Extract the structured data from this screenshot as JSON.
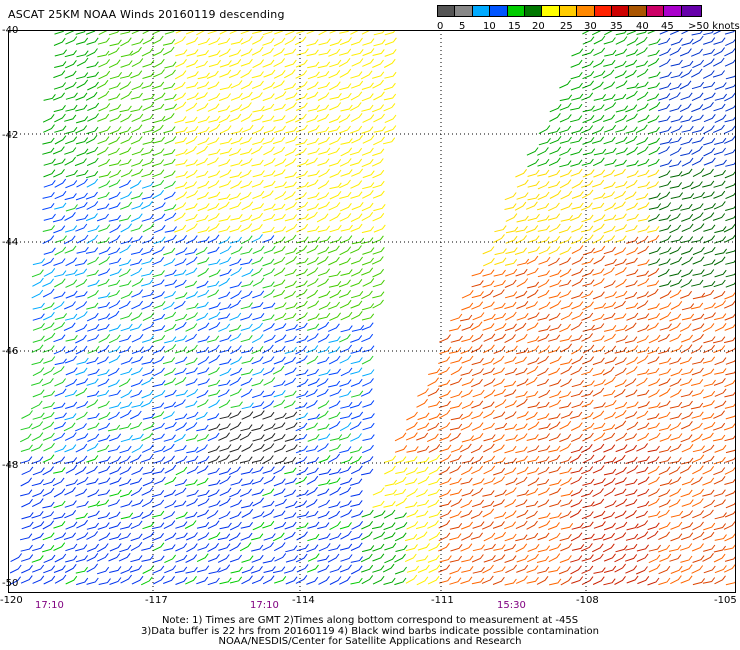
{
  "title": "ASCAT 25KM NOAA Winds 20160119 descending",
  "legend": {
    "colors": [
      "#555555",
      "#888888",
      "#00aaff",
      "#0055ff",
      "#00cc00",
      "#007700",
      "#ffff00",
      "#ffcc00",
      "#ff8800",
      "#ff2200",
      "#cc0000",
      "#aa5500",
      "#cc0066",
      "#aa00cc",
      "#6600aa"
    ],
    "labels": [
      "0",
      "5",
      "10",
      "15",
      "20",
      "25",
      "30",
      "35",
      "40",
      "45",
      ">50 knots"
    ]
  },
  "y_axis": {
    "labels": [
      "-40",
      "-42",
      "-44",
      "-46",
      "-48",
      "-50"
    ]
  },
  "x_axis": {
    "labels": [
      "-120",
      "-117",
      "-114",
      "-111",
      "-108",
      "-105"
    ]
  },
  "time_labels": [
    "17:10",
    "17:10",
    "15:30"
  ],
  "notes": [
    "Note: 1) Times are GMT 2)Times along bottom correspond to measurement at -45S",
    "3)Data buffer is 22 hrs from 20160119 4) Black wind barbs indicate possible contamination",
    "NOAA/NESDIS/Center for Satellite Applications and Research"
  ]
}
